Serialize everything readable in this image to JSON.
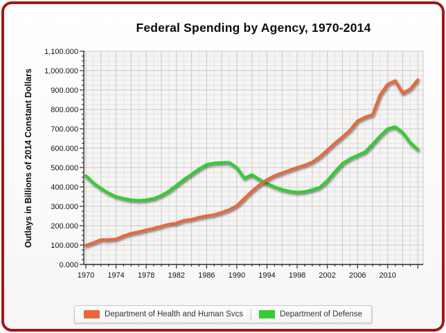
{
  "frame": {
    "border_color": "#a11818"
  },
  "title": "Federal Spending by Agency, 1970-2014",
  "y_axis": {
    "label": "Outlays in Billions of 2014 Constant Dollars",
    "tick_labels": [
      "0.000",
      "100.000",
      "200.000",
      "300.000",
      "400.000",
      "500.000",
      "600.000",
      "700.000",
      "800.000",
      "900.000",
      "1,000.000",
      "1,100.000"
    ],
    "min": 0,
    "max": 1100,
    "major_step": 100,
    "minor_step": 25
  },
  "x_axis": {
    "tick_labels": [
      "1970",
      "1974",
      "1978",
      "1982",
      "1986",
      "1990",
      "1994",
      "1998",
      "2002",
      "2006",
      "2010"
    ],
    "min": 1970,
    "max": 2014,
    "label_step": 4,
    "minor_step": 1,
    "major_grid_step": 2
  },
  "legend": {
    "items": [
      {
        "key": "hhs",
        "label": "Department of Health and Human Svcs",
        "color": "#e8683d"
      },
      {
        "key": "defense",
        "label": "Department of Defense",
        "color": "#33cc33"
      }
    ]
  },
  "chart_data": {
    "type": "line",
    "title": "Federal Spending by Agency, 1970-2014",
    "xlabel": "",
    "ylabel": "Outlays in Billions of 2014 Constant Dollars",
    "ylim": [
      0,
      1100
    ],
    "xlim": [
      1970,
      2014
    ],
    "grid": true,
    "legend_position": "bottom",
    "x": [
      1970,
      1971,
      1972,
      1973,
      1974,
      1975,
      1976,
      1977,
      1978,
      1979,
      1980,
      1981,
      1982,
      1983,
      1984,
      1985,
      1986,
      1987,
      1988,
      1989,
      1990,
      1991,
      1992,
      1993,
      1994,
      1995,
      1996,
      1997,
      1998,
      1999,
      2000,
      2001,
      2002,
      2003,
      2004,
      2005,
      2006,
      2007,
      2008,
      2009,
      2010,
      2011,
      2012,
      2013,
      2014
    ],
    "series": [
      {
        "key": "hhs",
        "name": "Department of Health and Human Svcs",
        "color": "#e8683d",
        "values": [
          98,
          112,
          128,
          127,
          131,
          147,
          160,
          168,
          178,
          186,
          197,
          207,
          213,
          227,
          232,
          243,
          250,
          256,
          268,
          282,
          303,
          340,
          378,
          410,
          437,
          458,
          472,
          486,
          500,
          512,
          528,
          555,
          590,
          625,
          658,
          692,
          740,
          760,
          772,
          875,
          930,
          948,
          884,
          905,
          953
        ]
      },
      {
        "key": "defense",
        "name": "Department of Defense",
        "color": "#33cc33",
        "values": [
          458,
          420,
          392,
          368,
          350,
          340,
          333,
          330,
          333,
          340,
          356,
          378,
          408,
          438,
          465,
          492,
          515,
          523,
          525,
          526,
          499,
          445,
          463,
          438,
          418,
          400,
          386,
          377,
          372,
          375,
          385,
          398,
          432,
          478,
          520,
          545,
          563,
          580,
          620,
          663,
          700,
          710,
          680,
          628,
          592
        ]
      }
    ]
  }
}
